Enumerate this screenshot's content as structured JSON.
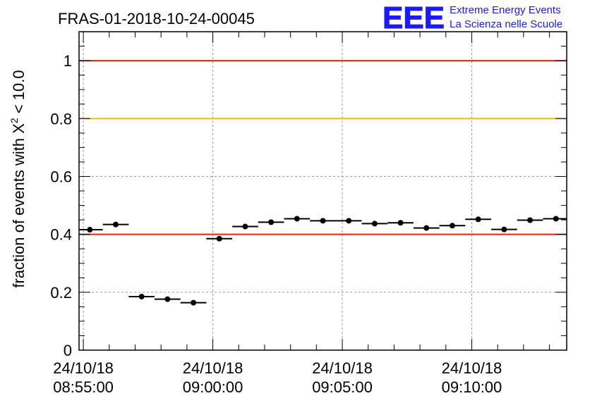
{
  "chart_data": {
    "type": "scatter",
    "title": "FRAS-01-2018-10-24-00045",
    "ylabel_main": "fraction of events with X",
    "ylabel_sup": "2",
    "ylabel_tail": " < 10.0",
    "xlabel": "",
    "xlim": [
      "08:54:50",
      "09:13:40"
    ],
    "ylim": [
      0,
      1.1
    ],
    "y_ticks": [
      {
        "value": 0,
        "label": "0"
      },
      {
        "value": 0.2,
        "label": "0.2"
      },
      {
        "value": 0.4,
        "label": "0.4"
      },
      {
        "value": 0.6,
        "label": "0.6"
      },
      {
        "value": 0.8,
        "label": "0.8"
      },
      {
        "value": 1.0,
        "label": "1"
      }
    ],
    "x_ticks": [
      {
        "time": "08:55:00",
        "date_label": "24/10/18",
        "time_label": "08:55:00"
      },
      {
        "time": "09:00:00",
        "date_label": "24/10/18",
        "time_label": "09:00:00"
      },
      {
        "time": "09:05:00",
        "date_label": "24/10/18",
        "time_label": "09:05:00"
      },
      {
        "time": "09:10:00",
        "date_label": "24/10/18",
        "time_label": "09:10:00"
      }
    ],
    "grid": true,
    "reference_lines": [
      {
        "y": 1.0,
        "color": "#e8201a"
      },
      {
        "y": 0.8,
        "color": "#f5c000"
      },
      {
        "y": 0.4,
        "color": "#e8201a"
      }
    ],
    "series": [
      {
        "bin_width": "00:01:00",
        "points": [
          {
            "x": "08:55:15",
            "y": 0.416
          },
          {
            "x": "08:56:15",
            "y": 0.434
          },
          {
            "x": "08:57:15",
            "y": 0.185
          },
          {
            "x": "08:58:15",
            "y": 0.176
          },
          {
            "x": "08:59:15",
            "y": 0.164
          },
          {
            "x": "09:00:15",
            "y": 0.385
          },
          {
            "x": "09:01:15",
            "y": 0.427
          },
          {
            "x": "09:02:15",
            "y": 0.442
          },
          {
            "x": "09:03:15",
            "y": 0.454
          },
          {
            "x": "09:04:15",
            "y": 0.447
          },
          {
            "x": "09:05:15",
            "y": 0.447
          },
          {
            "x": "09:06:15",
            "y": 0.437
          },
          {
            "x": "09:07:15",
            "y": 0.44
          },
          {
            "x": "09:08:15",
            "y": 0.422
          },
          {
            "x": "09:09:15",
            "y": 0.43
          },
          {
            "x": "09:10:15",
            "y": 0.452
          },
          {
            "x": "09:11:15",
            "y": 0.417
          },
          {
            "x": "09:12:15",
            "y": 0.449
          },
          {
            "x": "09:13:15",
            "y": 0.454
          }
        ]
      }
    ]
  },
  "logo": {
    "mark": "EEE",
    "line1": "Extreme Energy Events",
    "line2": "La Scienza nelle Scuole",
    "color": "#1a1aff"
  },
  "colors": {
    "marker": "#000000",
    "frame": "#000000",
    "grid": "#9a9a9a"
  }
}
